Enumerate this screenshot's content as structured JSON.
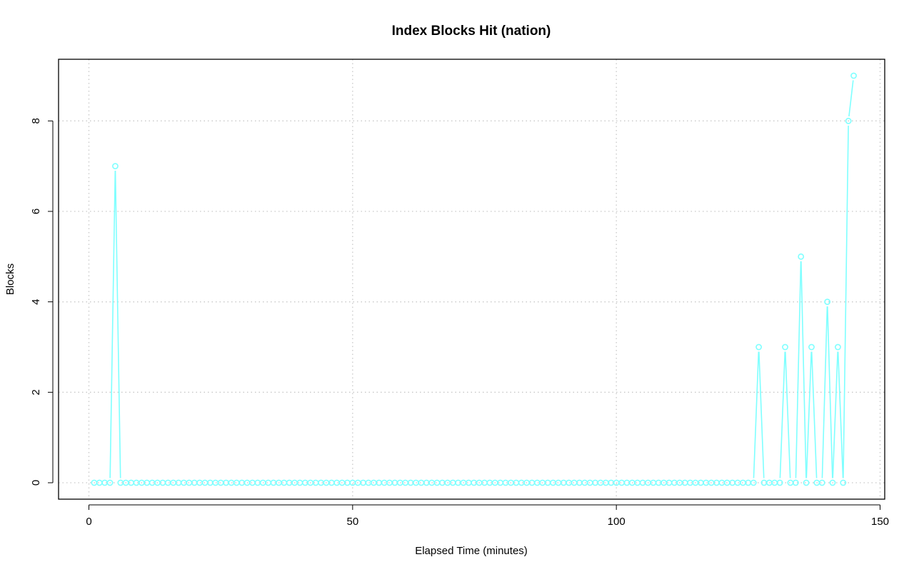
{
  "chart_data": {
    "type": "line",
    "title": "Index Blocks Hit (nation)",
    "xlabel": "Elapsed Time (minutes)",
    "ylabel": "Blocks",
    "xlim": [
      -5,
      150
    ],
    "ylim": [
      0,
      9
    ],
    "x_ticks": [
      0,
      50,
      100,
      150
    ],
    "y_ticks": [
      0,
      2,
      4,
      6,
      8
    ],
    "grid": true,
    "line_color": "#7fffff",
    "point_style": "open-circle",
    "x": [
      1,
      2,
      3,
      4,
      5,
      6,
      7,
      8,
      9,
      10,
      11,
      12,
      13,
      14,
      15,
      16,
      17,
      18,
      19,
      20,
      21,
      22,
      23,
      24,
      25,
      26,
      27,
      28,
      29,
      30,
      31,
      32,
      33,
      34,
      35,
      36,
      37,
      38,
      39,
      40,
      41,
      42,
      43,
      44,
      45,
      46,
      47,
      48,
      49,
      50,
      51,
      52,
      53,
      54,
      55,
      56,
      57,
      58,
      59,
      60,
      61,
      62,
      63,
      64,
      65,
      66,
      67,
      68,
      69,
      70,
      71,
      72,
      73,
      74,
      75,
      76,
      77,
      78,
      79,
      80,
      81,
      82,
      83,
      84,
      85,
      86,
      87,
      88,
      89,
      90,
      91,
      92,
      93,
      94,
      95,
      96,
      97,
      98,
      99,
      100,
      101,
      102,
      103,
      104,
      105,
      106,
      107,
      108,
      109,
      110,
      111,
      112,
      113,
      114,
      115,
      116,
      117,
      118,
      119,
      120,
      121,
      122,
      123,
      124,
      125,
      126,
      127,
      128,
      129,
      130,
      131,
      132,
      133,
      134,
      135,
      136,
      137,
      138,
      139,
      140,
      141,
      142,
      143,
      144,
      145
    ],
    "values": [
      0,
      0,
      0,
      0,
      7,
      0,
      0,
      0,
      0,
      0,
      0,
      0,
      0,
      0,
      0,
      0,
      0,
      0,
      0,
      0,
      0,
      0,
      0,
      0,
      0,
      0,
      0,
      0,
      0,
      0,
      0,
      0,
      0,
      0,
      0,
      0,
      0,
      0,
      0,
      0,
      0,
      0,
      0,
      0,
      0,
      0,
      0,
      0,
      0,
      0,
      0,
      0,
      0,
      0,
      0,
      0,
      0,
      0,
      0,
      0,
      0,
      0,
      0,
      0,
      0,
      0,
      0,
      0,
      0,
      0,
      0,
      0,
      0,
      0,
      0,
      0,
      0,
      0,
      0,
      0,
      0,
      0,
      0,
      0,
      0,
      0,
      0,
      0,
      0,
      0,
      0,
      0,
      0,
      0,
      0,
      0,
      0,
      0,
      0,
      0,
      0,
      0,
      0,
      0,
      0,
      0,
      0,
      0,
      0,
      0,
      0,
      0,
      0,
      0,
      0,
      0,
      0,
      0,
      0,
      0,
      0,
      0,
      0,
      0,
      0,
      0,
      3,
      0,
      0,
      0,
      0,
      3,
      0,
      0,
      5,
      0,
      3,
      0,
      0,
      4,
      0,
      3,
      0,
      8,
      9
    ]
  }
}
